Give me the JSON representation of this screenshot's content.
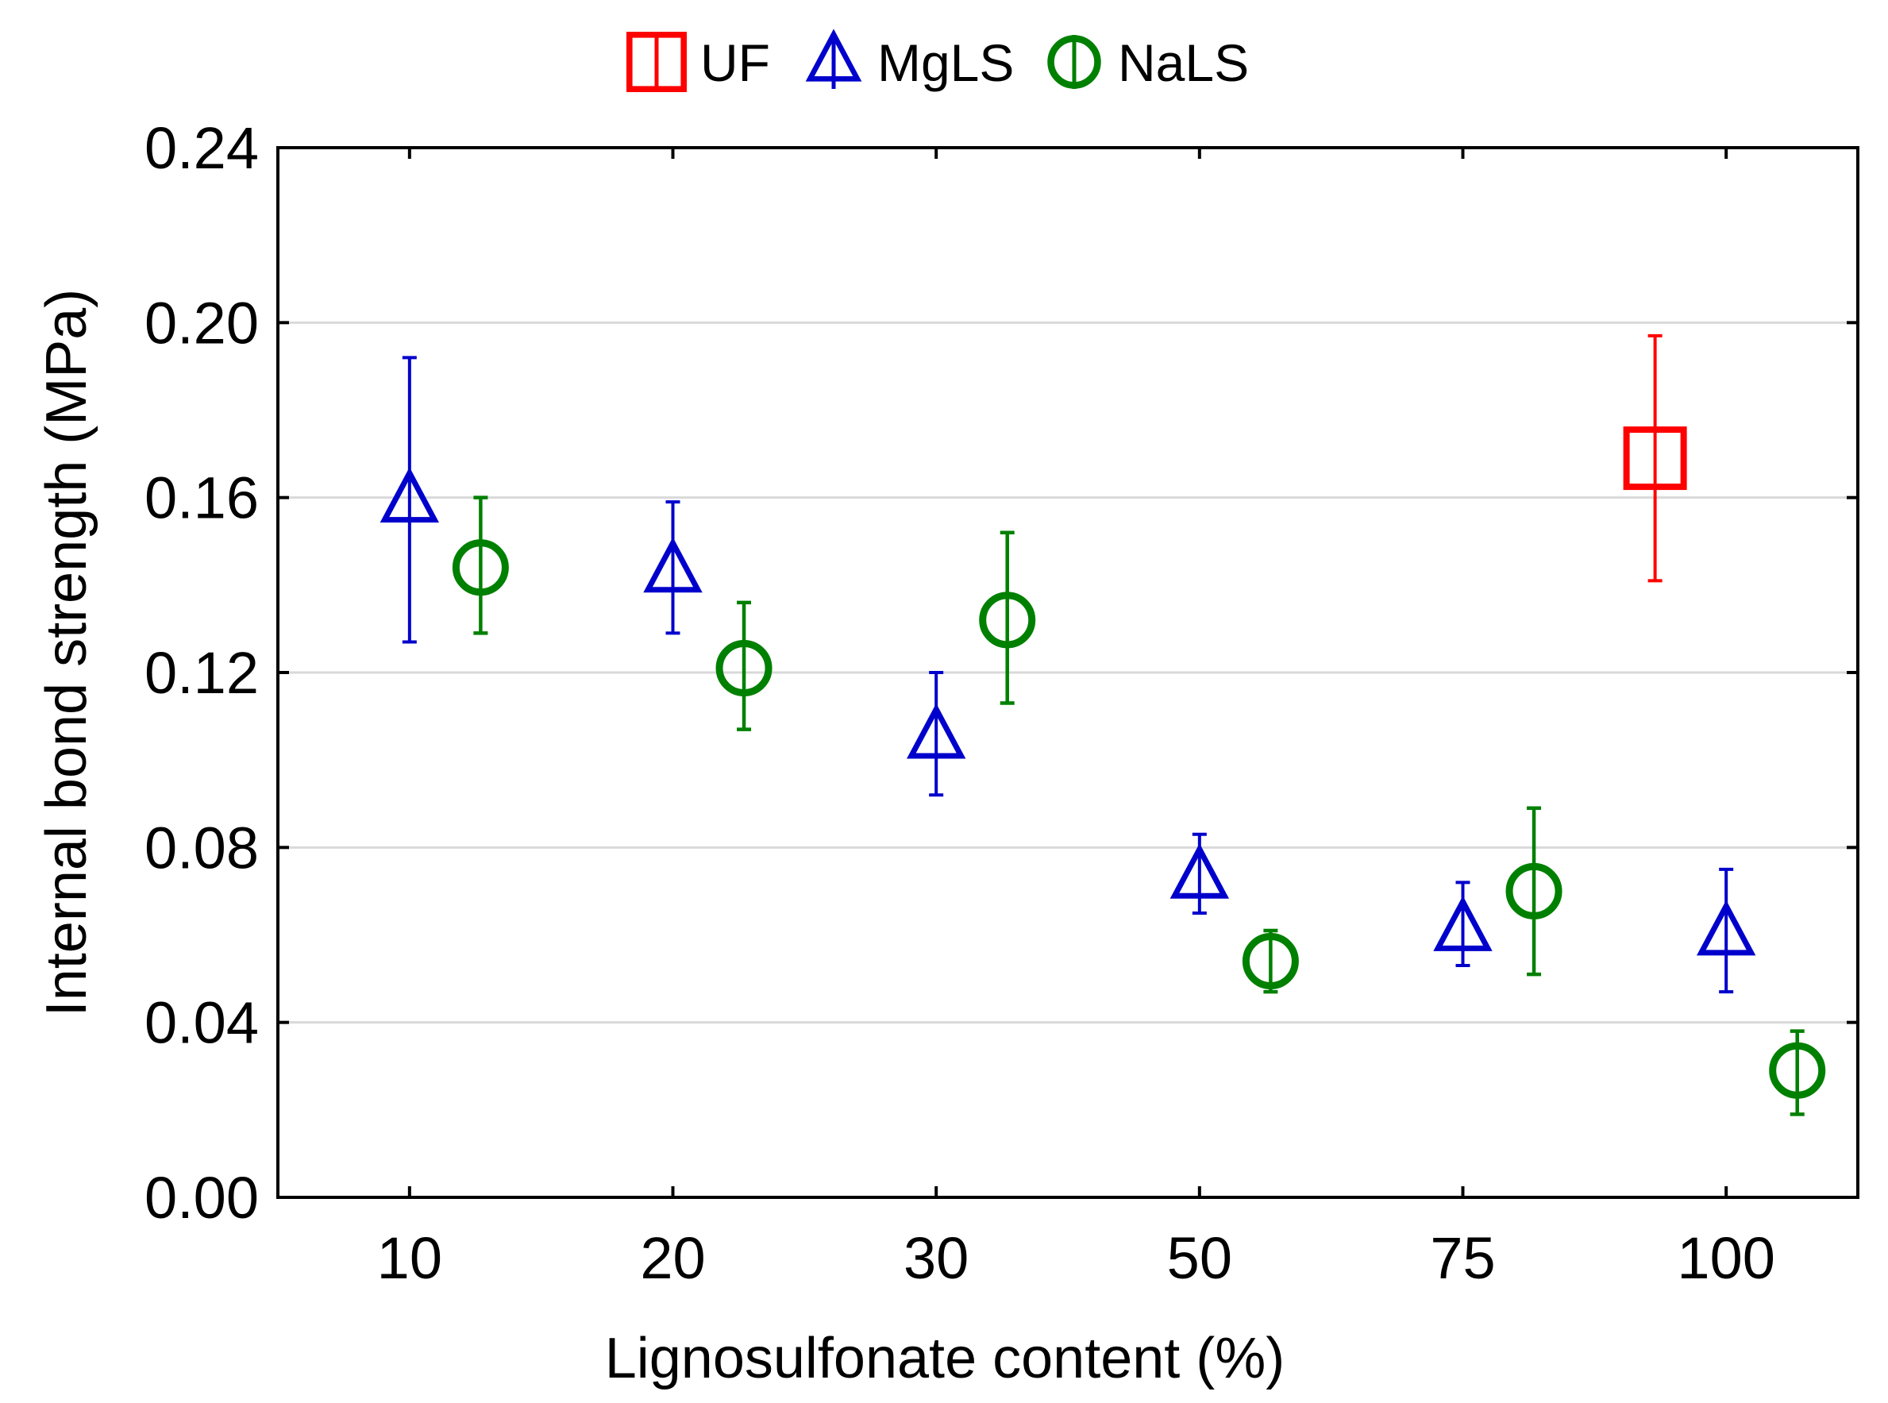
{
  "chart_data": {
    "type": "scatter",
    "title": "",
    "xlabel": "Lignosulfonate content (%)",
    "ylabel": "Internal bond strength  (MPa)",
    "categories": [
      "10",
      "20",
      "30",
      "50",
      "75",
      "100"
    ],
    "ylim": [
      0,
      0.24
    ],
    "yticks": [
      "0.00",
      "0.04",
      "0.08",
      "0.12",
      "0.16",
      "0.20",
      "0.24"
    ],
    "ytick_values": [
      0,
      0.04,
      0.08,
      0.12,
      0.16,
      0.2,
      0.24
    ],
    "grid": true,
    "legend_position": "top-center",
    "series": [
      {
        "name": "UF",
        "marker": "square",
        "color": "#ff0000",
        "points": [
          {
            "category": "100",
            "offset": -0.27,
            "value": 0.169,
            "err_low": 0.141,
            "err_high": 0.197
          }
        ]
      },
      {
        "name": "MgLS",
        "marker": "triangle",
        "color": "#0000cc",
        "points": [
          {
            "category": "10",
            "offset": 0,
            "value": 0.159,
            "err_low": 0.127,
            "err_high": 0.192
          },
          {
            "category": "20",
            "offset": 0,
            "value": 0.143,
            "err_low": 0.129,
            "err_high": 0.159
          },
          {
            "category": "30",
            "offset": 0,
            "value": 0.105,
            "err_low": 0.092,
            "err_high": 0.12
          },
          {
            "category": "50",
            "offset": 0,
            "value": 0.073,
            "err_low": 0.065,
            "err_high": 0.083
          },
          {
            "category": "75",
            "offset": 0,
            "value": 0.061,
            "err_low": 0.053,
            "err_high": 0.072
          },
          {
            "category": "100",
            "offset": 0,
            "value": 0.06,
            "err_low": 0.047,
            "err_high": 0.075
          }
        ]
      },
      {
        "name": "NaLS",
        "marker": "circle",
        "color": "#008000",
        "points": [
          {
            "category": "10",
            "offset": 0.27,
            "value": 0.144,
            "err_low": 0.129,
            "err_high": 0.16
          },
          {
            "category": "20",
            "offset": 0.27,
            "value": 0.121,
            "err_low": 0.107,
            "err_high": 0.136
          },
          {
            "category": "30",
            "offset": 0.27,
            "value": 0.132,
            "err_low": 0.113,
            "err_high": 0.152
          },
          {
            "category": "50",
            "offset": 0.27,
            "value": 0.054,
            "err_low": 0.047,
            "err_high": 0.061
          },
          {
            "category": "75",
            "offset": 0.27,
            "value": 0.07,
            "err_low": 0.051,
            "err_high": 0.089
          },
          {
            "category": "100",
            "offset": 0.27,
            "value": 0.029,
            "err_low": 0.019,
            "err_high": 0.038
          }
        ]
      }
    ]
  }
}
